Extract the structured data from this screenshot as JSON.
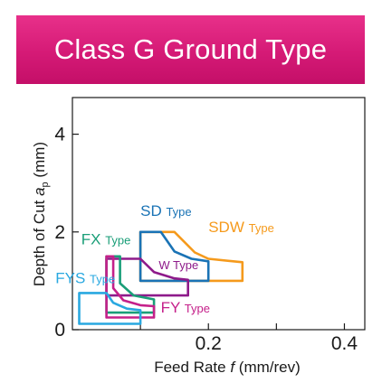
{
  "banner": {
    "title": "Class G Ground Type",
    "color": "#d51a76"
  },
  "chart_data": {
    "type": "area",
    "title": "",
    "xlabel_parts": [
      "Feed Rate ",
      "f",
      " (mm/rev)"
    ],
    "ylabel_parts": [
      "Depth of Cut ",
      "a",
      "p",
      " (mm)"
    ],
    "xlim": [
      0,
      0.43
    ],
    "ylim": [
      0,
      4.75
    ],
    "x_ticks": [
      {
        "value": 0.1,
        "label": ""
      },
      {
        "value": 0.2,
        "label": "0.2"
      },
      {
        "value": 0.3,
        "label": ""
      },
      {
        "value": 0.4,
        "label": "0.4"
      }
    ],
    "y_ticks": [
      {
        "value": 0,
        "label": "0"
      },
      {
        "value": 2,
        "label": "2"
      },
      {
        "value": 4,
        "label": "4"
      }
    ],
    "grid": false,
    "series": [
      {
        "name": "SDW",
        "suffix": "Type",
        "color": "#f59a1c",
        "label_anchor": [
          0.2,
          2.0
        ],
        "points": [
          [
            0.1,
            2.0
          ],
          [
            0.15,
            2.0
          ],
          [
            0.18,
            1.58
          ],
          [
            0.2,
            1.45
          ],
          [
            0.25,
            1.38
          ],
          [
            0.25,
            1.0
          ],
          [
            0.1,
            1.0
          ]
        ]
      },
      {
        "name": "SD",
        "suffix": "Type",
        "color": "#1a73b5",
        "label_anchor": [
          0.1,
          2.33
        ],
        "points": [
          [
            0.1,
            2.0
          ],
          [
            0.13,
            2.0
          ],
          [
            0.15,
            1.6
          ],
          [
            0.175,
            1.45
          ],
          [
            0.2,
            1.4
          ],
          [
            0.2,
            1.0
          ],
          [
            0.1,
            1.0
          ]
        ]
      },
      {
        "name": "W",
        "suffix": "Type",
        "color": "#8e1a8a",
        "label_anchor": [
          0.127,
          1.24
        ],
        "points": [
          [
            0.05,
            1.45
          ],
          [
            0.1,
            1.45
          ],
          [
            0.12,
            1.18
          ],
          [
            0.15,
            1.05
          ],
          [
            0.17,
            1.02
          ],
          [
            0.17,
            0.7
          ],
          [
            0.05,
            0.7
          ]
        ]
      },
      {
        "name": "FX",
        "suffix": "Type",
        "color": "#1a9e78",
        "label_anchor": [
          0.013,
          1.75
        ],
        "points": [
          [
            0.05,
            1.5
          ],
          [
            0.07,
            1.5
          ],
          [
            0.07,
            0.95
          ],
          [
            0.09,
            0.7
          ],
          [
            0.12,
            0.62
          ],
          [
            0.12,
            0.35
          ],
          [
            0.05,
            0.35
          ]
        ]
      },
      {
        "name": "FY",
        "suffix": "Type",
        "color": "#c5208a",
        "label_anchor": [
          0.13,
          0.35
        ],
        "points": [
          [
            0.05,
            1.5
          ],
          [
            0.06,
            1.5
          ],
          [
            0.06,
            0.85
          ],
          [
            0.075,
            0.6
          ],
          [
            0.1,
            0.5
          ],
          [
            0.12,
            0.48
          ],
          [
            0.12,
            0.25
          ],
          [
            0.05,
            0.25
          ]
        ]
      },
      {
        "name": "FYS",
        "suffix": "Type",
        "color": "#29a8e0",
        "label_anchor": [
          -0.025,
          0.95
        ],
        "points": [
          [
            0.01,
            0.75
          ],
          [
            0.05,
            0.75
          ],
          [
            0.06,
            0.55
          ],
          [
            0.08,
            0.43
          ],
          [
            0.1,
            0.4
          ],
          [
            0.1,
            0.12
          ],
          [
            0.01,
            0.12
          ]
        ]
      }
    ]
  }
}
